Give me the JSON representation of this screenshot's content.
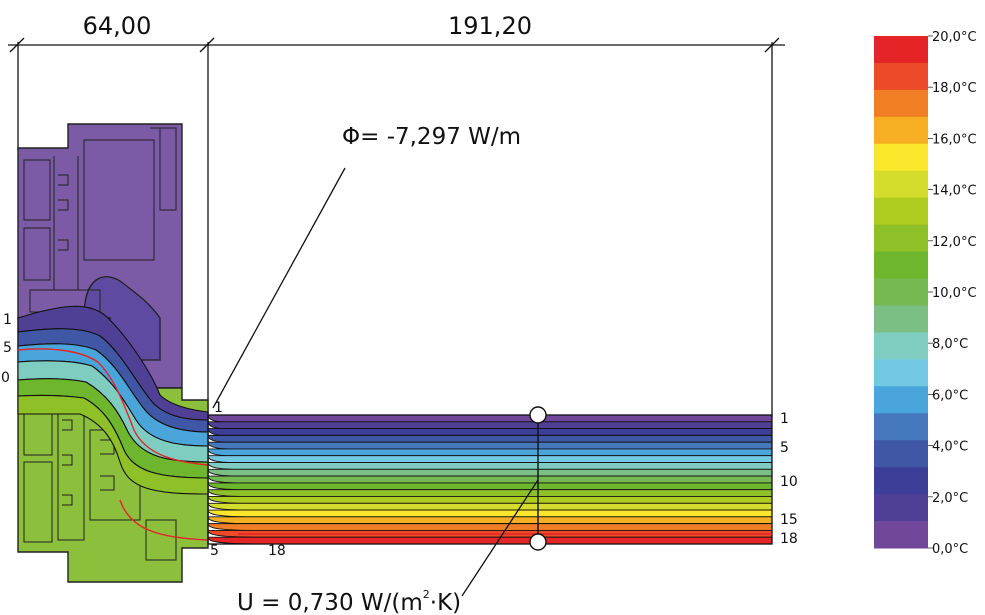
{
  "dimensions": {
    "left_width": "64,00",
    "right_width": "191,20"
  },
  "annotations": {
    "phi_symbol": "Φ",
    "phi_text": "= -7,297 W/m",
    "u_prefix": "U = 0,730 W/(m",
    "u_exp": "2",
    "u_suffix": "·K)"
  },
  "isotherm_labels": {
    "right": [
      "1",
      "5",
      "10",
      "15",
      "18"
    ],
    "left": [
      "1",
      "5",
      "0"
    ],
    "bottom": [
      "5",
      "18"
    ],
    "corner": "1"
  },
  "legend": {
    "unit": "°C",
    "labels": [
      "20,0",
      "18,0",
      "16,0",
      "14,0",
      "12,0",
      "10,0",
      "8,0",
      "6,0",
      "4,0",
      "2,0",
      "0,0"
    ],
    "colors_top_to_bottom": [
      "#e42427",
      "#ec4a28",
      "#f07e24",
      "#f6ae22",
      "#fae62a",
      "#d4dc2c",
      "#aecb20",
      "#8ec028",
      "#6db62e",
      "#76b952",
      "#7bbf85",
      "#7ecdc0",
      "#73c8e3",
      "#4aa5db",
      "#4678bd",
      "#3f57a5",
      "#3d3e97",
      "#4f3f95",
      "#71479c"
    ]
  },
  "colors": {
    "frame_purple": "#7b5aa6",
    "frame_green": "#8bbf3c",
    "isotherm_line": "#111111",
    "red_isotherm": "#e42427"
  }
}
